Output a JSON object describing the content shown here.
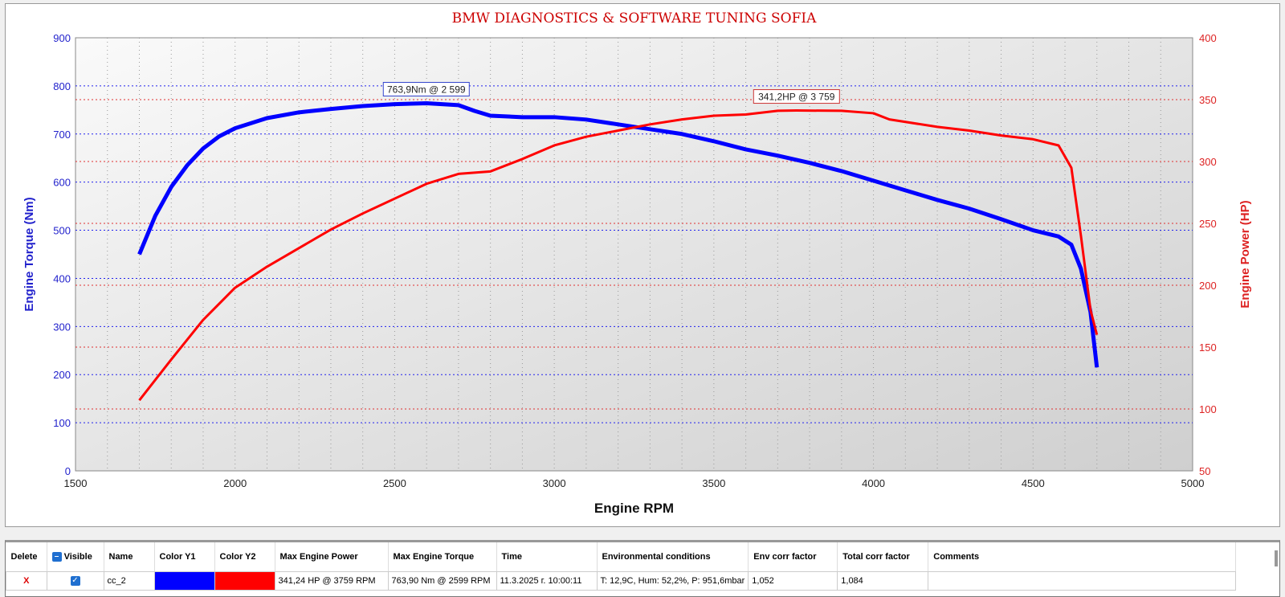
{
  "chart_data": {
    "type": "line",
    "title": "BMW DIAGNOSTICS & SOFTWARE TUNING SOFIA",
    "xlabel": "Engine RPM",
    "ylabel": "Engine Torque (Nm)",
    "y2label": "Engine Power (HP)",
    "xlim": [
      1500,
      5000
    ],
    "ylim": [
      0,
      900
    ],
    "y2lim": [
      50,
      400
    ],
    "xticks": [
      1500,
      2000,
      2500,
      3000,
      3500,
      4000,
      4500,
      5000
    ],
    "yticks": [
      0,
      100,
      200,
      300,
      400,
      500,
      600,
      700,
      800,
      900
    ],
    "y2ticks": [
      50,
      100,
      150,
      200,
      250,
      300,
      350,
      400
    ],
    "colors": {
      "torque": "#0000ff",
      "power": "#ff0000",
      "title": "#cc0000"
    },
    "series": [
      {
        "name": "Torque",
        "axis": "y1",
        "x": [
          1700,
          1750,
          1800,
          1850,
          1900,
          1950,
          2000,
          2100,
          2200,
          2300,
          2400,
          2500,
          2600,
          2700,
          2750,
          2800,
          2900,
          3000,
          3100,
          3200,
          3300,
          3400,
          3500,
          3600,
          3700,
          3800,
          3900,
          4000,
          4100,
          4200,
          4300,
          4400,
          4500,
          4580,
          4620,
          4650,
          4680,
          4700
        ],
        "y": [
          450,
          530,
          590,
          635,
          670,
          695,
          712,
          733,
          745,
          752,
          758,
          762,
          764,
          760,
          748,
          738,
          735,
          735,
          730,
          720,
          710,
          700,
          685,
          668,
          655,
          640,
          623,
          603,
          583,
          563,
          545,
          523,
          500,
          487,
          470,
          420,
          330,
          215
        ]
      },
      {
        "name": "Power",
        "axis": "y2",
        "x": [
          1700,
          1800,
          1900,
          2000,
          2100,
          2200,
          2300,
          2400,
          2500,
          2600,
          2700,
          2800,
          2900,
          3000,
          3100,
          3200,
          3300,
          3400,
          3500,
          3600,
          3700,
          3759,
          3900,
          4000,
          4050,
          4200,
          4300,
          4400,
          4500,
          4580,
          4620,
          4650,
          4680,
          4700
        ],
        "y": [
          107,
          140,
          172,
          198,
          215,
          230,
          245,
          258,
          270,
          282,
          290,
          292,
          302,
          313,
          320,
          325,
          330,
          334,
          337,
          338,
          341,
          341.2,
          341,
          339,
          334,
          328,
          325,
          321,
          318,
          313,
          295,
          240,
          180,
          160
        ]
      }
    ],
    "annotations": [
      {
        "text": "763,9Nm @ 2 599",
        "x": 2599,
        "y": 763.9,
        "axis": "y1"
      },
      {
        "text": "341,2HP @ 3 759",
        "x": 3759,
        "y": 341.2,
        "axis": "y2"
      }
    ],
    "legend": "none",
    "grid": true
  },
  "table": {
    "headers": [
      "Delete",
      "Visible",
      "Name",
      "Color Y1",
      "Color Y2",
      "Max Engine Power",
      "Max Engine Torque",
      "Time",
      "Environmental conditions",
      "Env corr factor",
      "Total corr factor",
      "Comments"
    ],
    "rows": [
      {
        "delete": "X",
        "visible": "✓",
        "name": "cc_2",
        "color_y1": "#0000ff",
        "color_y2": "#ff0000",
        "max_power": "341,24 HP @ 3759 RPM",
        "max_torque": "763,90 Nm @ 2599 RPM",
        "time": "11.3.2025 г. 10:00:11",
        "env": "T: 12,9C, Hum: 52,2%, P: 951,6mbar",
        "env_corr": "1,052",
        "total_corr": "1,084",
        "comments": ""
      }
    ]
  }
}
